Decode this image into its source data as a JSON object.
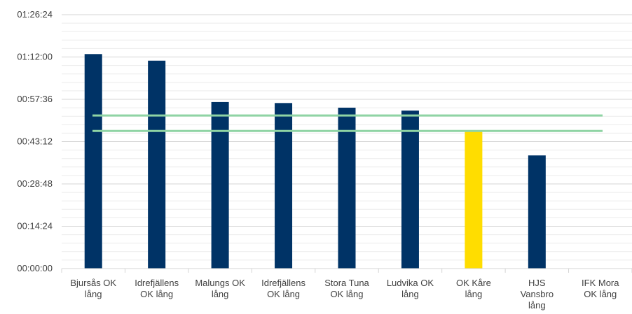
{
  "chart_data": {
    "type": "bar",
    "title": "",
    "xlabel": "",
    "ylabel": "",
    "categories": [
      [
        "Bjursås OK",
        "lång"
      ],
      [
        "Idrefjällens",
        "OK lång"
      ],
      [
        "Malungs OK",
        "lång"
      ],
      [
        "Idrefjällens",
        "OK lång"
      ],
      [
        "Stora Tuna",
        "OK lång"
      ],
      [
        "Ludvika OK",
        "lång"
      ],
      [
        "OK Kåre",
        "lång"
      ],
      [
        "HJS",
        "Vansbro",
        "lång"
      ],
      [
        "IFK Mora",
        "OK lång"
      ]
    ],
    "values_seconds": [
      4380,
      4245,
      3400,
      3380,
      3285,
      3225,
      2805,
      2310,
      0
    ],
    "bar_colors": [
      "#003366",
      "#003366",
      "#003366",
      "#003366",
      "#003366",
      "#003366",
      "#FFDD00",
      "#003366",
      "#003366"
    ],
    "reference_lines_seconds": [
      3125,
      2810
    ],
    "reference_line_color": "#8FD4A4",
    "y_ticks": [
      "00:00:00",
      "00:14:24",
      "00:28:48",
      "00:43:12",
      "00:57:36",
      "01:12:00",
      "01:26:24"
    ],
    "ylim_seconds": [
      0,
      5184
    ],
    "grid": true
  }
}
